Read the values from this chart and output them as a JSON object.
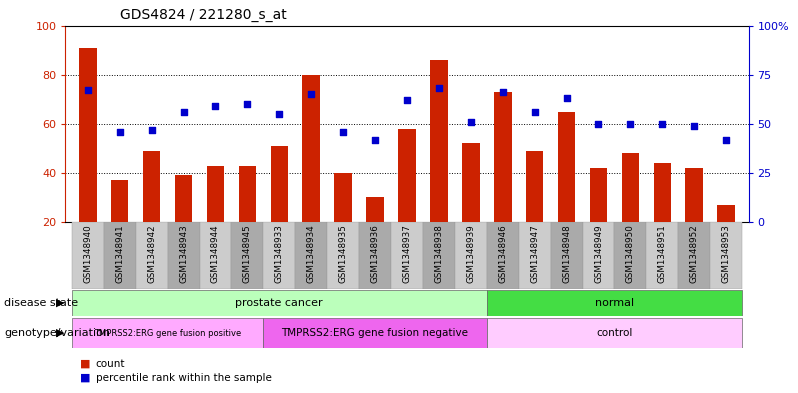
{
  "title": "GDS4824 / 221280_s_at",
  "samples": [
    "GSM1348940",
    "GSM1348941",
    "GSM1348942",
    "GSM1348943",
    "GSM1348944",
    "GSM1348945",
    "GSM1348933",
    "GSM1348934",
    "GSM1348935",
    "GSM1348936",
    "GSM1348937",
    "GSM1348938",
    "GSM1348939",
    "GSM1348946",
    "GSM1348947",
    "GSM1348948",
    "GSM1348949",
    "GSM1348950",
    "GSM1348951",
    "GSM1348952",
    "GSM1348953"
  ],
  "counts": [
    91,
    37,
    49,
    39,
    43,
    43,
    51,
    80,
    40,
    30,
    58,
    86,
    52,
    73,
    49,
    65,
    42,
    48,
    44,
    42,
    27
  ],
  "percentiles": [
    67,
    46,
    47,
    56,
    59,
    60,
    55,
    65,
    46,
    42,
    62,
    68,
    51,
    66,
    56,
    63,
    50,
    50,
    50,
    49,
    42
  ],
  "count_min": 20,
  "count_max": 100,
  "pct_min": 0,
  "pct_max": 100,
  "bar_color": "#cc2200",
  "dot_color": "#0000cc",
  "grid_color": "#000000",
  "groups": {
    "disease_state": [
      {
        "label": "prostate cancer",
        "start": 0,
        "end": 12,
        "color": "#bbffbb"
      },
      {
        "label": "normal",
        "start": 13,
        "end": 20,
        "color": "#44dd44"
      }
    ],
    "genotype": [
      {
        "label": "TMPRSS2:ERG gene fusion positive",
        "start": 0,
        "end": 5,
        "color": "#ffaaff"
      },
      {
        "label": "TMPRSS2:ERG gene fusion negative",
        "start": 6,
        "end": 12,
        "color": "#ee66ee"
      },
      {
        "label": "control",
        "start": 13,
        "end": 20,
        "color": "#ffccff"
      }
    ]
  },
  "left_label": "disease state",
  "left_label2": "genotype/variation",
  "legend_items": [
    {
      "label": "count",
      "color": "#cc2200"
    },
    {
      "label": "percentile rank within the sample",
      "color": "#0000cc"
    }
  ],
  "bar_width": 0.55,
  "sample_box_colors": [
    "#cccccc",
    "#aaaaaa"
  ]
}
